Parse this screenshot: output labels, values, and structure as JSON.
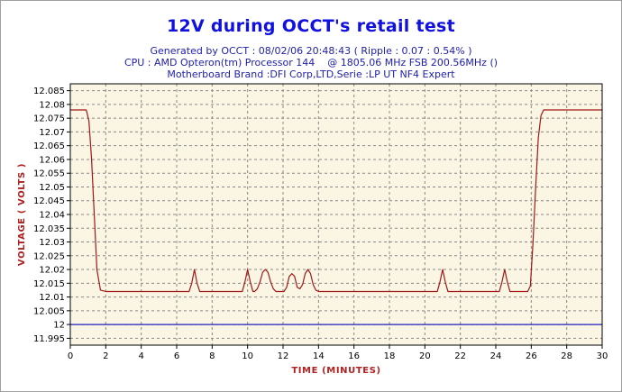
{
  "title": "12V during OCCT's retail test",
  "subtitles": [
    "Generated by OCCT : 08/02/06 20:48:43 ( Ripple : 0.07 : 0.54% )",
    "CPU : AMD Opteron(tm) Processor 144    @ 1805.06 MHz FSB 200.56MHz ()",
    "Motherboard Brand :DFI Corp,LTD,Serie :LP UT NF4 Expert"
  ],
  "chart_data": {
    "type": "line",
    "xlabel": "TIME (MINUTES)",
    "ylabel": "VOLTAGE ( VOLTS )",
    "xlim": [
      0,
      30
    ],
    "ylim": [
      11.9925,
      12.0875
    ],
    "x_ticks": [
      0,
      2,
      4,
      6,
      8,
      10,
      12,
      14,
      16,
      18,
      20,
      22,
      24,
      26,
      28,
      30
    ],
    "y_ticks": [
      "11.995",
      "12",
      "12.005",
      "12.01",
      "12.015",
      "12.02",
      "12.025",
      "12.03",
      "12.035",
      "12.04",
      "12.045",
      "12.05",
      "12.055",
      "12.06",
      "12.065",
      "12.07",
      "12.075",
      "12.08",
      "12.085"
    ],
    "grid": true,
    "colors": {
      "plot_background": "#fbf6e3",
      "voltage_line": "#a01818",
      "reference_line": "#2020c0",
      "grid": "#888888"
    },
    "series": [
      {
        "style": "curve",
        "x": [
          0,
          0.9,
          1.05,
          1.2,
          1.35,
          1.5,
          1.7,
          2.0,
          6.7,
          6.85,
          7.0,
          7.15,
          7.3,
          9.7,
          9.85,
          10.0,
          10.15,
          10.3,
          10.4,
          10.55,
          10.7,
          10.85,
          11.0,
          11.15,
          11.3,
          11.45,
          11.6,
          12.05,
          12.2,
          12.35,
          12.5,
          12.65,
          12.8,
          12.95,
          13.1,
          13.25,
          13.4,
          13.55,
          13.7,
          13.85,
          14.0,
          20.7,
          20.85,
          21.0,
          21.15,
          21.3,
          24.2,
          24.35,
          24.5,
          24.65,
          24.8,
          25.8,
          25.95,
          26.1,
          26.25,
          26.4,
          26.55,
          26.7,
          27.0,
          30
        ],
        "values": [
          12.078,
          12.078,
          12.074,
          12.06,
          12.04,
          12.02,
          12.0125,
          12.012,
          12.012,
          12.015,
          12.02,
          12.015,
          12.012,
          12.012,
          12.0155,
          12.02,
          12.0155,
          12.012,
          12.012,
          12.013,
          12.0155,
          12.019,
          12.02,
          12.019,
          12.0155,
          12.013,
          12.012,
          12.012,
          12.0135,
          12.0175,
          12.0185,
          12.0175,
          12.0135,
          12.013,
          12.0145,
          12.0185,
          12.02,
          12.0185,
          12.0145,
          12.0125,
          12.012,
          12.012,
          12.0155,
          12.02,
          12.0155,
          12.012,
          12.012,
          12.0155,
          12.02,
          12.0155,
          12.012,
          12.012,
          12.014,
          12.03,
          12.05,
          12.068,
          12.076,
          12.078,
          12.078,
          12.078
        ]
      },
      {
        "style": "flat",
        "x": [
          0,
          30
        ],
        "values": [
          12.0,
          12.0
        ]
      }
    ]
  }
}
